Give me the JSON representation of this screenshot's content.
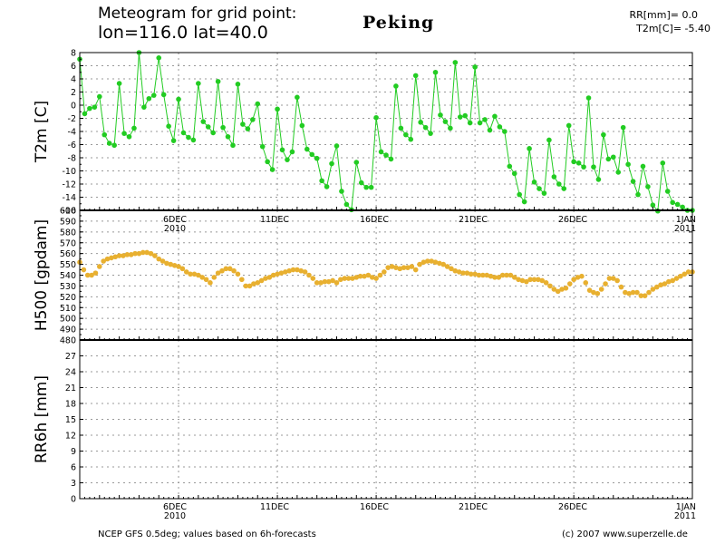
{
  "header": {
    "line1": "Meteogram for grid point:",
    "line2": "lon=116.0  lat=40.0",
    "location": "Peking",
    "rr_summary": "RR[mm]= 0.0",
    "t2m_summary": "T2m[C]= -5.40"
  },
  "footer": {
    "source": "NCEP GFS 0.5deg; values based on 6h-forecasts",
    "copyright": "(c) 2007 www.superzelle.de"
  },
  "colors": {
    "t2m": "#22cc22",
    "h500": "#e8b030",
    "axis": "#000000",
    "grid": "#999999"
  },
  "chart_data": [
    {
      "type": "line",
      "ylabel": "T2m [C]",
      "ylim": [
        -16,
        8
      ],
      "yticks": [
        "8",
        "6",
        "4",
        "2",
        "0",
        "-2",
        "-4",
        "-6",
        "-8",
        "-10",
        "-12",
        "-14",
        "-16"
      ],
      "x_unit": "6h steps from 1 Dec 2010 00Z",
      "x_range": [
        0,
        124
      ],
      "series": [
        {
          "x": [
            0,
            1,
            2,
            3,
            4,
            5,
            6,
            7,
            8,
            9,
            10,
            11,
            12,
            13,
            14,
            15,
            16,
            17,
            18,
            19,
            20,
            21,
            22,
            23,
            24,
            25,
            26,
            27,
            28,
            29,
            30,
            31,
            32,
            33,
            34,
            35,
            36,
            37,
            38,
            39,
            40,
            41,
            42,
            43,
            44,
            45,
            46,
            47,
            48,
            49,
            50,
            51,
            52,
            53,
            54,
            55,
            56,
            57,
            58,
            59,
            60,
            61,
            62,
            63,
            64,
            65,
            66,
            67,
            68,
            69,
            70,
            71,
            72,
            73,
            74,
            75,
            76,
            77,
            78,
            79,
            80,
            81,
            82,
            83,
            84,
            85,
            86,
            87,
            88,
            89,
            90,
            91,
            92,
            93,
            94,
            95,
            96,
            97,
            98,
            99,
            100,
            101,
            102,
            103,
            104,
            105,
            106,
            107,
            108,
            109,
            110,
            111,
            112,
            113,
            114,
            115,
            116,
            117,
            118,
            119,
            120,
            121,
            122,
            123,
            124
          ],
          "values": [
            7,
            -1.3,
            -0.5,
            -0.3,
            1.3,
            -4.5,
            -5.8,
            -6.1,
            3.3,
            -4.3,
            -4.8,
            -3.5,
            8,
            -0.3,
            1,
            1.5,
            7.2,
            1.6,
            -3.2,
            -5.4,
            0.9,
            -4.2,
            -4.9,
            -5.3,
            3.3,
            -2.5,
            -3.3,
            -4.2,
            3.6,
            -3.4,
            -4.8,
            -6.1,
            3.2,
            -2.9,
            -3.6,
            -2.2,
            0.2,
            -6.3,
            -8.6,
            -9.8,
            -0.6,
            -6.8,
            -8.3,
            -7.1,
            1.2,
            -3.1,
            -6.7,
            -7.5,
            -8.1,
            -11.5,
            -12.4,
            -8.9,
            -6.2,
            -13.1,
            -15.1,
            -15.9,
            -8.7,
            -11.8,
            -12.5,
            -12.5,
            -1.9,
            -7.1,
            -7.6,
            -8.2,
            2.9,
            -3.5,
            -4.5,
            -5.2,
            4.5,
            -2.6,
            -3.4,
            -4.3,
            5,
            -1.5,
            -2.5,
            -3.5,
            6.5,
            -1.8,
            -1.6,
            -2.7,
            5.8,
            -2.7,
            -2.2,
            -3.8,
            -1.7,
            -3.3,
            -4,
            -9.3,
            -10.4,
            -13.6,
            -14.7,
            -6.6,
            -11.7,
            -12.7,
            -13.4,
            -5.3,
            -10.9,
            -12,
            -12.7,
            -3.1,
            -8.6,
            -8.8,
            -9.4,
            1.1,
            -9.4,
            -11.3,
            -4.5,
            -8.2,
            -7.9,
            -10.2,
            -3.4,
            -9,
            -11.6,
            -13.6,
            -9.3,
            -12.4,
            -15.2,
            -16.1,
            -8.8,
            -13.1,
            -14.8,
            -15.1,
            -15.5,
            -16,
            -16
          ]
        }
      ]
    },
    {
      "type": "scatter",
      "ylabel": "H500 [gpdam]",
      "ylim": [
        480,
        600
      ],
      "yticks": [
        "600",
        "590",
        "580",
        "570",
        "560",
        "550",
        "540",
        "530",
        "520",
        "510",
        "500",
        "490",
        "480"
      ],
      "series": [
        {
          "values": [
            552,
            545,
            540,
            540,
            542,
            548,
            553,
            555,
            556,
            557,
            558,
            558,
            559,
            559,
            560,
            560,
            561,
            561,
            560,
            558,
            555,
            553,
            551,
            550,
            549,
            548,
            546,
            543,
            541,
            541,
            540,
            538,
            536,
            533,
            538,
            542,
            544,
            546,
            546,
            544,
            541,
            536,
            530,
            530,
            532,
            533,
            535,
            537,
            538,
            540,
            541,
            542,
            543,
            544,
            545,
            545,
            544,
            543,
            540,
            537,
            533,
            533,
            534,
            534,
            535,
            533,
            536,
            537,
            537,
            537,
            538,
            539,
            539,
            540,
            538,
            537,
            540,
            543,
            547,
            548,
            547,
            546,
            547,
            547,
            548,
            545,
            550,
            552,
            553,
            553,
            552,
            551,
            550,
            548,
            546,
            544,
            543,
            542,
            542,
            541,
            541,
            540,
            540,
            540,
            539,
            538,
            538,
            540,
            540,
            540,
            538,
            536,
            535,
            534,
            536,
            536,
            536,
            535,
            533,
            530,
            527,
            525,
            527,
            528,
            532,
            536,
            538,
            539,
            533,
            526,
            524,
            523,
            527,
            532,
            537,
            537,
            535,
            529,
            524,
            523,
            524,
            524,
            521,
            521,
            524,
            527,
            529,
            531,
            532,
            534,
            535,
            537,
            539,
            541,
            543,
            543
          ]
        }
      ]
    },
    {
      "type": "bar",
      "ylabel": "RR6h [mm]",
      "ylim": [
        0,
        30
      ],
      "yticks": [
        "27",
        "24",
        "21",
        "18",
        "15",
        "12",
        "9",
        "6",
        "3",
        "0"
      ],
      "values": []
    }
  ],
  "x_axis": {
    "labels": [
      {
        "day": "6DEC",
        "year": "2010"
      },
      {
        "day": "11DEC",
        "year": ""
      },
      {
        "day": "16DEC",
        "year": ""
      },
      {
        "day": "21DEC",
        "year": ""
      },
      {
        "day": "26DEC",
        "year": ""
      },
      {
        "day": "1JAN",
        "year": "2011"
      }
    ]
  }
}
